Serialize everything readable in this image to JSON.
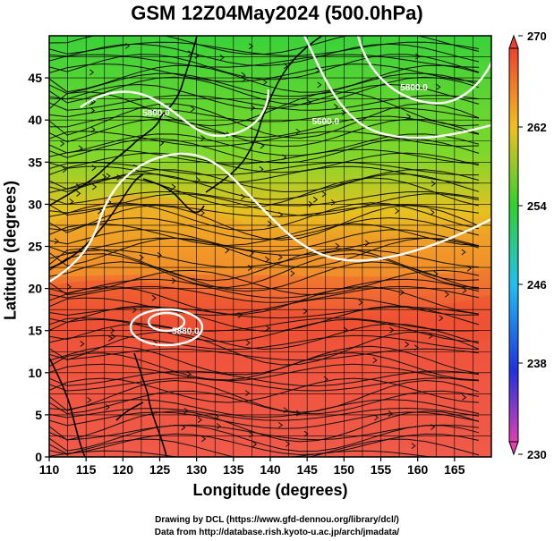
{
  "chart_data": {
    "type": "heatmap",
    "title": "GSM 12Z04May2024 (500.0hPa)",
    "xlabel": "Longitude (degrees)",
    "ylabel": "Latitude  (degrees)",
    "xlim": [
      110,
      170
    ],
    "ylim": [
      0,
      50
    ],
    "xticks": [
      110,
      115,
      120,
      125,
      130,
      135,
      140,
      145,
      150,
      155,
      160,
      165
    ],
    "yticks": [
      0,
      5,
      10,
      15,
      20,
      25,
      30,
      35,
      40,
      45
    ],
    "grid": true,
    "colorbar": {
      "range": [
        230,
        270
      ],
      "ticks": [
        230,
        238,
        246,
        254,
        262,
        270
      ],
      "colors": [
        "#e040b0",
        "#2030e0",
        "#20c0f0",
        "#30d030",
        "#f0c020",
        "#f04030"
      ]
    },
    "contours": [
      {
        "label": "5880.0",
        "lon": 128.5,
        "lat": 14.6
      },
      {
        "label": "5800.0",
        "lon": 159.5,
        "lat": 43.5
      },
      {
        "label": "5800.0",
        "lon": 124.5,
        "lat": 40.5
      },
      {
        "label": "5600.0",
        "lon": 147.5,
        "lat": 39.5
      }
    ]
  },
  "credits": {
    "line1": "Drawing by DCL (https://www.gfd-dennou.org/library/dcl/)",
    "line2": "Data from http://database.rish.kyoto-u.ac.jp/arch/jmadata/"
  }
}
